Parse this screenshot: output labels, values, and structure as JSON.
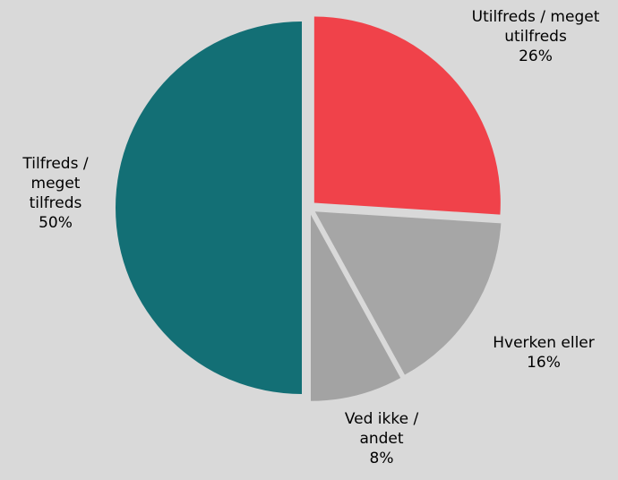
{
  "chart_data": {
    "type": "pie",
    "categories": [
      "Utilfreds / meget utilfreds",
      "Hverken eller",
      "Ved ikke / andet",
      "Tilfreds / meget tilfreds"
    ],
    "values": [
      26,
      16,
      8,
      50
    ],
    "value_labels": [
      "26%",
      "16%",
      "8%",
      "50%"
    ],
    "colors": [
      "#f0424a",
      "#a6a6a6",
      "#a3a3a3",
      "#136f75"
    ]
  }
}
